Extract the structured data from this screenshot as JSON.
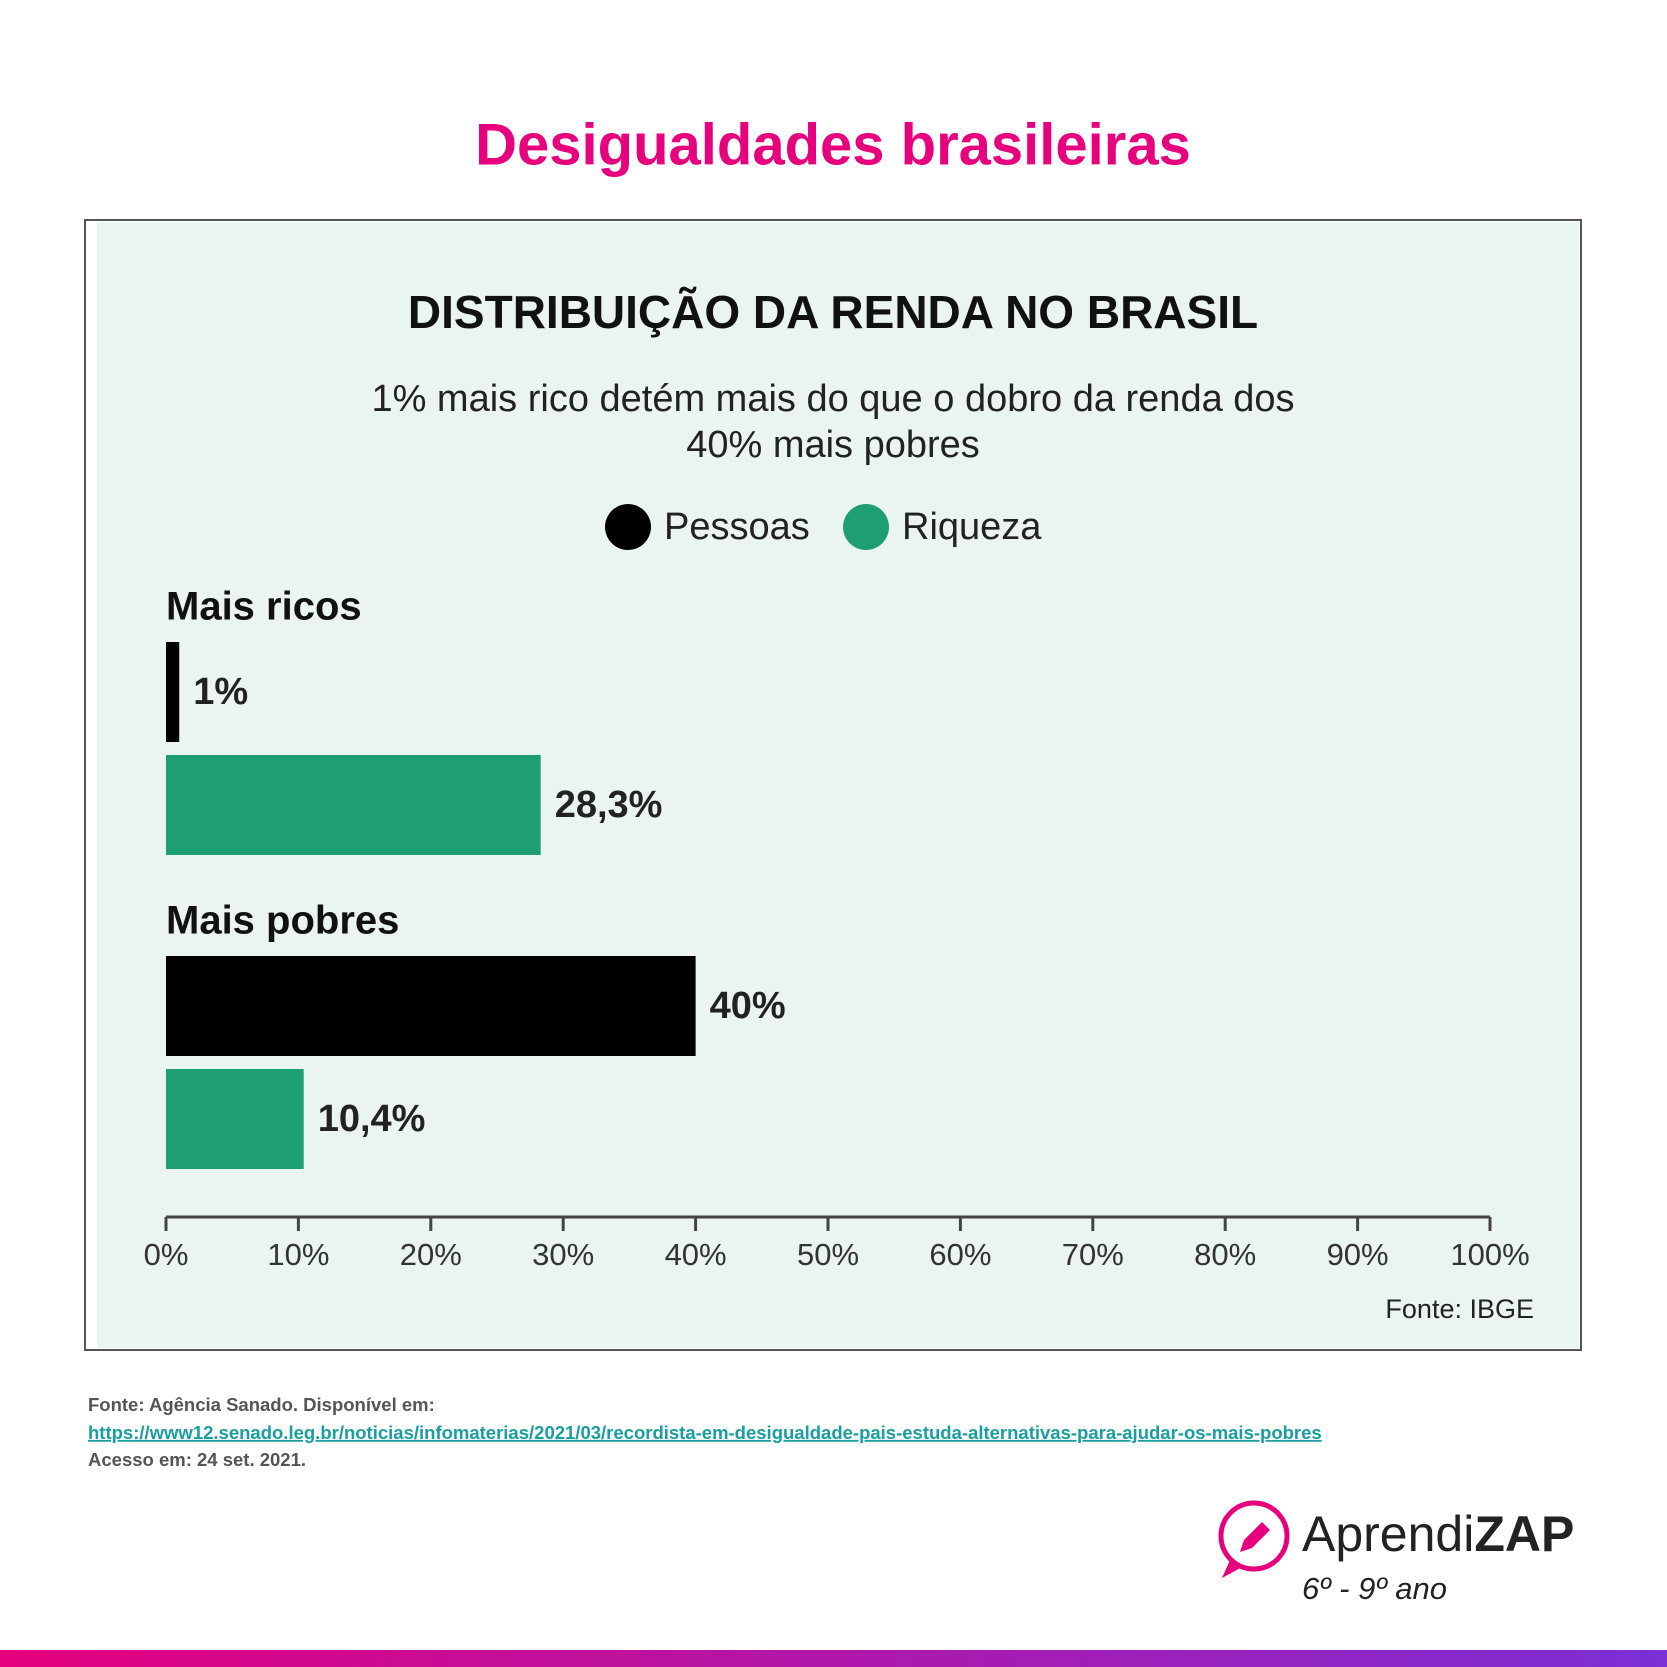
{
  "page_title": "Desigualdades brasileiras",
  "chart_data": {
    "type": "bar",
    "orientation": "horizontal",
    "title": "DISTRIBUIÇÃO DA RENDA NO BRASIL",
    "subtitle": [
      "1% mais rico detém mais do que o dobro da renda dos",
      "40% mais pobres"
    ],
    "categories": [
      "Mais ricos",
      "Mais pobres"
    ],
    "series": [
      {
        "name": "Pessoas",
        "color": "#000000",
        "values": [
          1,
          40
        ],
        "value_labels": [
          "1%",
          "40%"
        ]
      },
      {
        "name": "Riqueza",
        "color": "#1e9e74",
        "values": [
          28.3,
          10.4
        ],
        "value_labels": [
          "28,3%",
          "10,4%"
        ]
      }
    ],
    "xlim": [
      0,
      100
    ],
    "xticks": [
      {
        "value": 0,
        "label": "0%"
      },
      {
        "value": 10,
        "label": "10%"
      },
      {
        "value": 20,
        "label": "20%"
      },
      {
        "value": 30,
        "label": "30%"
      },
      {
        "value": 40,
        "label": "40%"
      },
      {
        "value": 50,
        "label": "50%"
      },
      {
        "value": 60,
        "label": "60%"
      },
      {
        "value": 70,
        "label": "70%"
      },
      {
        "value": 80,
        "label": "80%"
      },
      {
        "value": 90,
        "label": "90%"
      },
      {
        "value": 100,
        "label": "100%"
      }
    ],
    "legend": "top",
    "source": "Fonte: IBGE"
  },
  "footer": {
    "source": "Fonte: Agência Sanado. Disponível em:",
    "link": "https://www12.senado.leg.br/noticias/infomaterias/2021/03/recordista-em-desigualdade-pais-estuda-alternativas-para-ajudar-os-mais-pobres",
    "access": "Acesso em: 24 set. 2021."
  },
  "logo": {
    "name_light": "Aprendi",
    "name_bold": "ZAP",
    "grades": "6º - 9º ano"
  }
}
